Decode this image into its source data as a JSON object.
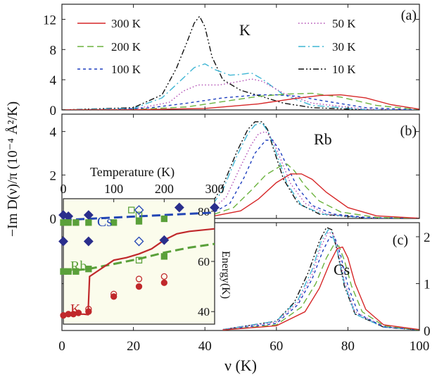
{
  "figure": {
    "ylabel": "−Im D(ν)/π (10⁻⁴ Å²/K)",
    "xlabel": "ν (K)",
    "xlim": [
      0,
      100
    ],
    "xticks": [
      "0",
      "20",
      "40",
      "60",
      "80",
      "100"
    ]
  },
  "series_styles": [
    {
      "name": "300 K",
      "color": "#d62728",
      "dash": "solid"
    },
    {
      "name": "200 K",
      "color": "#6cb33f",
      "dash": "dashed"
    },
    {
      "name": "100 K",
      "color": "#1f3fbf",
      "dash": "short-dash"
    },
    {
      "name": "50 K",
      "color": "#b04ab3",
      "dash": "dotted"
    },
    {
      "name": "30 K",
      "color": "#3fb6d4",
      "dash": "dash-dot"
    },
    {
      "name": "10 K",
      "color": "#111111",
      "dash": "dash-dot-dot"
    }
  ],
  "chart_data": [
    {
      "type": "line",
      "panel_label": "(a)",
      "element": "K",
      "ylim": [
        0,
        14
      ],
      "yticks": [
        "0",
        "4",
        "8",
        "12"
      ],
      "legend": [
        "300 K",
        "200 K",
        "100 K",
        "50 K",
        "30 K",
        "10 K"
      ],
      "legend_position": "top",
      "series": [
        {
          "name": "300 K",
          "x": [
            0,
            20,
            40,
            55,
            65,
            72,
            78,
            85,
            92,
            100
          ],
          "y": [
            0,
            0.02,
            0.2,
            0.8,
            1.5,
            1.9,
            2.0,
            1.6,
            0.7,
            0.1
          ]
        },
        {
          "name": "200 K",
          "x": [
            0,
            20,
            35,
            45,
            55,
            63,
            70,
            78,
            88,
            100
          ],
          "y": [
            0,
            0.05,
            0.4,
            1.1,
            1.8,
            2.1,
            2.2,
            1.7,
            0.6,
            0.05
          ]
        },
        {
          "name": "100 K",
          "x": [
            0,
            15,
            25,
            35,
            45,
            55,
            60,
            66,
            72,
            85,
            100
          ],
          "y": [
            0,
            0.05,
            0.3,
            0.9,
            1.6,
            2.0,
            2.0,
            1.8,
            1.3,
            0.3,
            0
          ]
        },
        {
          "name": "50 K",
          "x": [
            0,
            20,
            30,
            34,
            38,
            44,
            50,
            53,
            56,
            62,
            70,
            85,
            100
          ],
          "y": [
            0,
            0.1,
            1.0,
            2.5,
            3.3,
            3.3,
            3.8,
            4.1,
            3.8,
            2.2,
            0.9,
            0.1,
            0
          ]
        },
        {
          "name": "30 K",
          "x": [
            0,
            20,
            28,
            33,
            37,
            40,
            43,
            47,
            50,
            53,
            56,
            62,
            70,
            85,
            100
          ],
          "y": [
            0,
            0.2,
            1.6,
            3.8,
            5.6,
            6.1,
            5.3,
            4.6,
            4.7,
            4.9,
            4.1,
            2.0,
            0.6,
            0.05,
            0
          ]
        },
        {
          "name": "10 K",
          "x": [
            0,
            20,
            28,
            32,
            35,
            37,
            38.5,
            40,
            42,
            45,
            50,
            55,
            62,
            70,
            85,
            100
          ],
          "y": [
            0,
            0.3,
            2.0,
            5.5,
            9.0,
            11.5,
            12.4,
            11.0,
            7.0,
            4.0,
            2.6,
            1.9,
            0.9,
            0.3,
            0.02,
            0
          ]
        }
      ]
    },
    {
      "type": "line",
      "panel_label": "(b)",
      "element": "Rb",
      "ylim": [
        0,
        4.8
      ],
      "yticks": [
        "0",
        "2",
        "4"
      ],
      "series": [
        {
          "name": "300 K",
          "x": [
            40,
            50,
            55,
            60,
            64,
            67,
            70,
            74,
            80,
            88,
            100
          ],
          "y": [
            0.03,
            0.35,
            0.9,
            1.65,
            2.05,
            2.05,
            1.8,
            1.2,
            0.5,
            0.12,
            0.01
          ]
        },
        {
          "name": "200 K",
          "x": [
            40,
            48,
            53,
            57,
            61,
            63,
            65,
            68,
            72,
            78,
            88,
            100
          ],
          "y": [
            0.05,
            0.5,
            1.3,
            2.0,
            2.4,
            2.5,
            2.2,
            1.5,
            0.8,
            0.3,
            0.05,
            0
          ]
        },
        {
          "name": "100 K",
          "x": [
            40,
            47,
            51,
            54,
            57,
            59,
            61,
            63,
            66,
            70,
            76,
            85,
            100
          ],
          "y": [
            0.05,
            0.7,
            1.9,
            3.0,
            3.6,
            3.6,
            3.1,
            2.4,
            1.4,
            0.6,
            0.2,
            0.05,
            0
          ]
        },
        {
          "name": "50 K",
          "x": [
            40,
            46,
            50,
            53,
            55,
            57,
            59,
            61,
            64,
            68,
            74,
            85,
            100
          ],
          "y": [
            0.1,
            1.0,
            2.4,
            3.4,
            3.9,
            4.0,
            3.6,
            2.8,
            1.6,
            0.7,
            0.2,
            0.03,
            0
          ]
        },
        {
          "name": "30 K",
          "x": [
            40,
            45,
            49,
            52,
            54,
            56,
            58,
            60,
            63,
            67,
            73,
            85,
            100
          ],
          "y": [
            0.15,
            1.3,
            2.9,
            3.9,
            4.3,
            4.4,
            3.9,
            3.0,
            1.6,
            0.6,
            0.2,
            0.02,
            0
          ]
        },
        {
          "name": "10 K",
          "x": [
            40,
            45,
            49,
            52,
            54,
            56,
            57.5,
            59,
            62,
            66,
            72,
            85,
            100
          ],
          "y": [
            0.2,
            1.5,
            3.1,
            4.1,
            4.45,
            4.45,
            4.1,
            3.3,
            1.8,
            0.7,
            0.2,
            0.02,
            0
          ]
        }
      ]
    },
    {
      "type": "line",
      "panel_label": "(c)",
      "element": "Cs",
      "ylim": [
        0,
        2.3
      ],
      "yticks": [
        "0",
        "1",
        "2"
      ],
      "y_axis_side": "right",
      "series": [
        {
          "name": "300 K",
          "x": [
            45,
            60,
            68,
            72,
            75,
            77,
            78.5,
            80,
            82,
            85,
            90,
            100
          ],
          "y": [
            0.01,
            0.1,
            0.4,
            0.9,
            1.45,
            1.75,
            1.78,
            1.55,
            1.0,
            0.45,
            0.12,
            0.02
          ]
        },
        {
          "name": "200 K",
          "x": [
            45,
            60,
            67,
            71,
            74,
            76,
            77.5,
            79,
            81,
            84,
            90,
            100
          ],
          "y": [
            0.01,
            0.12,
            0.5,
            1.0,
            1.55,
            1.82,
            1.8,
            1.5,
            0.95,
            0.4,
            0.1,
            0.01
          ]
        },
        {
          "name": "100 K",
          "x": [
            45,
            60,
            66,
            70,
            73,
            75,
            76.5,
            78,
            80,
            83,
            90,
            100
          ],
          "y": [
            0.01,
            0.15,
            0.55,
            1.1,
            1.7,
            2.0,
            1.95,
            1.6,
            0.95,
            0.35,
            0.08,
            0.01
          ]
        },
        {
          "name": "50 K",
          "x": [
            45,
            60,
            66,
            70,
            72.5,
            74.5,
            76,
            77.5,
            79,
            82,
            90,
            100
          ],
          "y": [
            0.02,
            0.18,
            0.6,
            1.2,
            1.8,
            2.1,
            2.05,
            1.65,
            1.05,
            0.4,
            0.08,
            0.01
          ]
        },
        {
          "name": "30 K",
          "x": [
            45,
            60,
            66,
            70,
            72.5,
            74.5,
            75.5,
            77,
            79,
            82,
            90,
            100
          ],
          "y": [
            0.02,
            0.2,
            0.65,
            1.3,
            1.9,
            2.15,
            2.1,
            1.7,
            1.0,
            0.35,
            0.07,
            0.01
          ]
        },
        {
          "name": "10 K",
          "x": [
            45,
            60,
            65,
            69,
            72,
            74,
            75.5,
            77,
            79,
            82,
            90,
            100
          ],
          "y": [
            0.02,
            0.2,
            0.6,
            1.25,
            1.9,
            2.2,
            2.15,
            1.7,
            0.95,
            0.35,
            0.07,
            0.01
          ]
        }
      ]
    },
    {
      "type": "scatter",
      "role": "inset",
      "top_xlabel": "Temperature (K)",
      "top_xlim": [
        0,
        300
      ],
      "top_xticks": [
        "0",
        "100",
        "200",
        "300"
      ],
      "ylabel": "Energy(K)",
      "ylim": [
        35,
        85
      ],
      "yticks": [
        "40",
        "60",
        "80"
      ],
      "labels": [
        "Cs",
        "Rb",
        "K"
      ],
      "lines": [
        {
          "name": "Cs",
          "color": "#2346b5",
          "dash": "dashed",
          "x": [
            0,
            300
          ],
          "y": [
            76.5,
            79.5
          ]
        },
        {
          "name": "Rb",
          "color": "#5aa03a",
          "dash": "dashed",
          "x": [
            0,
            50,
            100,
            150,
            200,
            250,
            300
          ],
          "y": [
            56,
            57,
            59,
            61,
            63.5,
            65.5,
            67
          ]
        },
        {
          "name": "K",
          "color": "#c0282b",
          "dash": "solid",
          "x": [
            0,
            20,
            40,
            49,
            52,
            100,
            125,
            150,
            175,
            200,
            225,
            250,
            300
          ],
          "y": [
            38.5,
            39,
            39,
            38.8,
            54,
            60.5,
            61.5,
            63,
            65,
            68.5,
            71,
            72,
            73
          ]
        }
      ],
      "points": [
        {
          "series": "Cs",
          "marker": "diamond-filled",
          "color": "#2a2e8c",
          "x": [
            0,
            10,
            50,
            230,
            300
          ],
          "y": [
            78.5,
            78,
            78.5,
            81.5,
            81.5
          ]
        },
        {
          "series": "Cs",
          "marker": "square-open",
          "color": "#5aa03a",
          "x": [
            135,
            150
          ],
          "y": [
            80.5,
            78.5
          ]
        },
        {
          "series": "Cs",
          "marker": "diamond-open",
          "color": "#2346b5",
          "x": [
            150
          ],
          "y": [
            80.5
          ]
        },
        {
          "series": "Cs",
          "marker": "square-filled",
          "color": "#5aa03a",
          "x": [
            0,
            10,
            25,
            50,
            100,
            150,
            200
          ],
          "y": [
            75.5,
            75.5,
            75.5,
            75.5,
            75.5,
            76,
            77
          ]
        },
        {
          "series": "Rb",
          "marker": "diamond-filled",
          "color": "#2a2e8c",
          "x": [
            0,
            50,
            200
          ],
          "y": [
            68,
            68,
            68.5
          ]
        },
        {
          "series": "Rb",
          "marker": "diamond-open",
          "color": "#2346b5",
          "x": [
            150
          ],
          "y": [
            68
          ]
        },
        {
          "series": "Rb",
          "marker": "square-filled",
          "color": "#5aa03a",
          "x": [
            0,
            10,
            25,
            50,
            200
          ],
          "y": [
            56,
            56,
            56,
            57,
            62
          ]
        },
        {
          "series": "Rb",
          "marker": "square-open",
          "color": "#5aa03a",
          "x": [
            150
          ],
          "y": [
            60.5
          ]
        },
        {
          "series": "K",
          "marker": "circle-filled",
          "color": "#c0282b",
          "x": [
            0,
            10,
            20,
            30,
            50,
            100,
            150,
            200
          ],
          "y": [
            38.5,
            39,
            39,
            39.5,
            40,
            46,
            50,
            51.5
          ]
        },
        {
          "series": "K",
          "marker": "circle-open",
          "color": "#c0282b",
          "x": [
            50,
            100,
            150,
            200
          ],
          "y": [
            41,
            47,
            53,
            54
          ]
        }
      ]
    }
  ]
}
